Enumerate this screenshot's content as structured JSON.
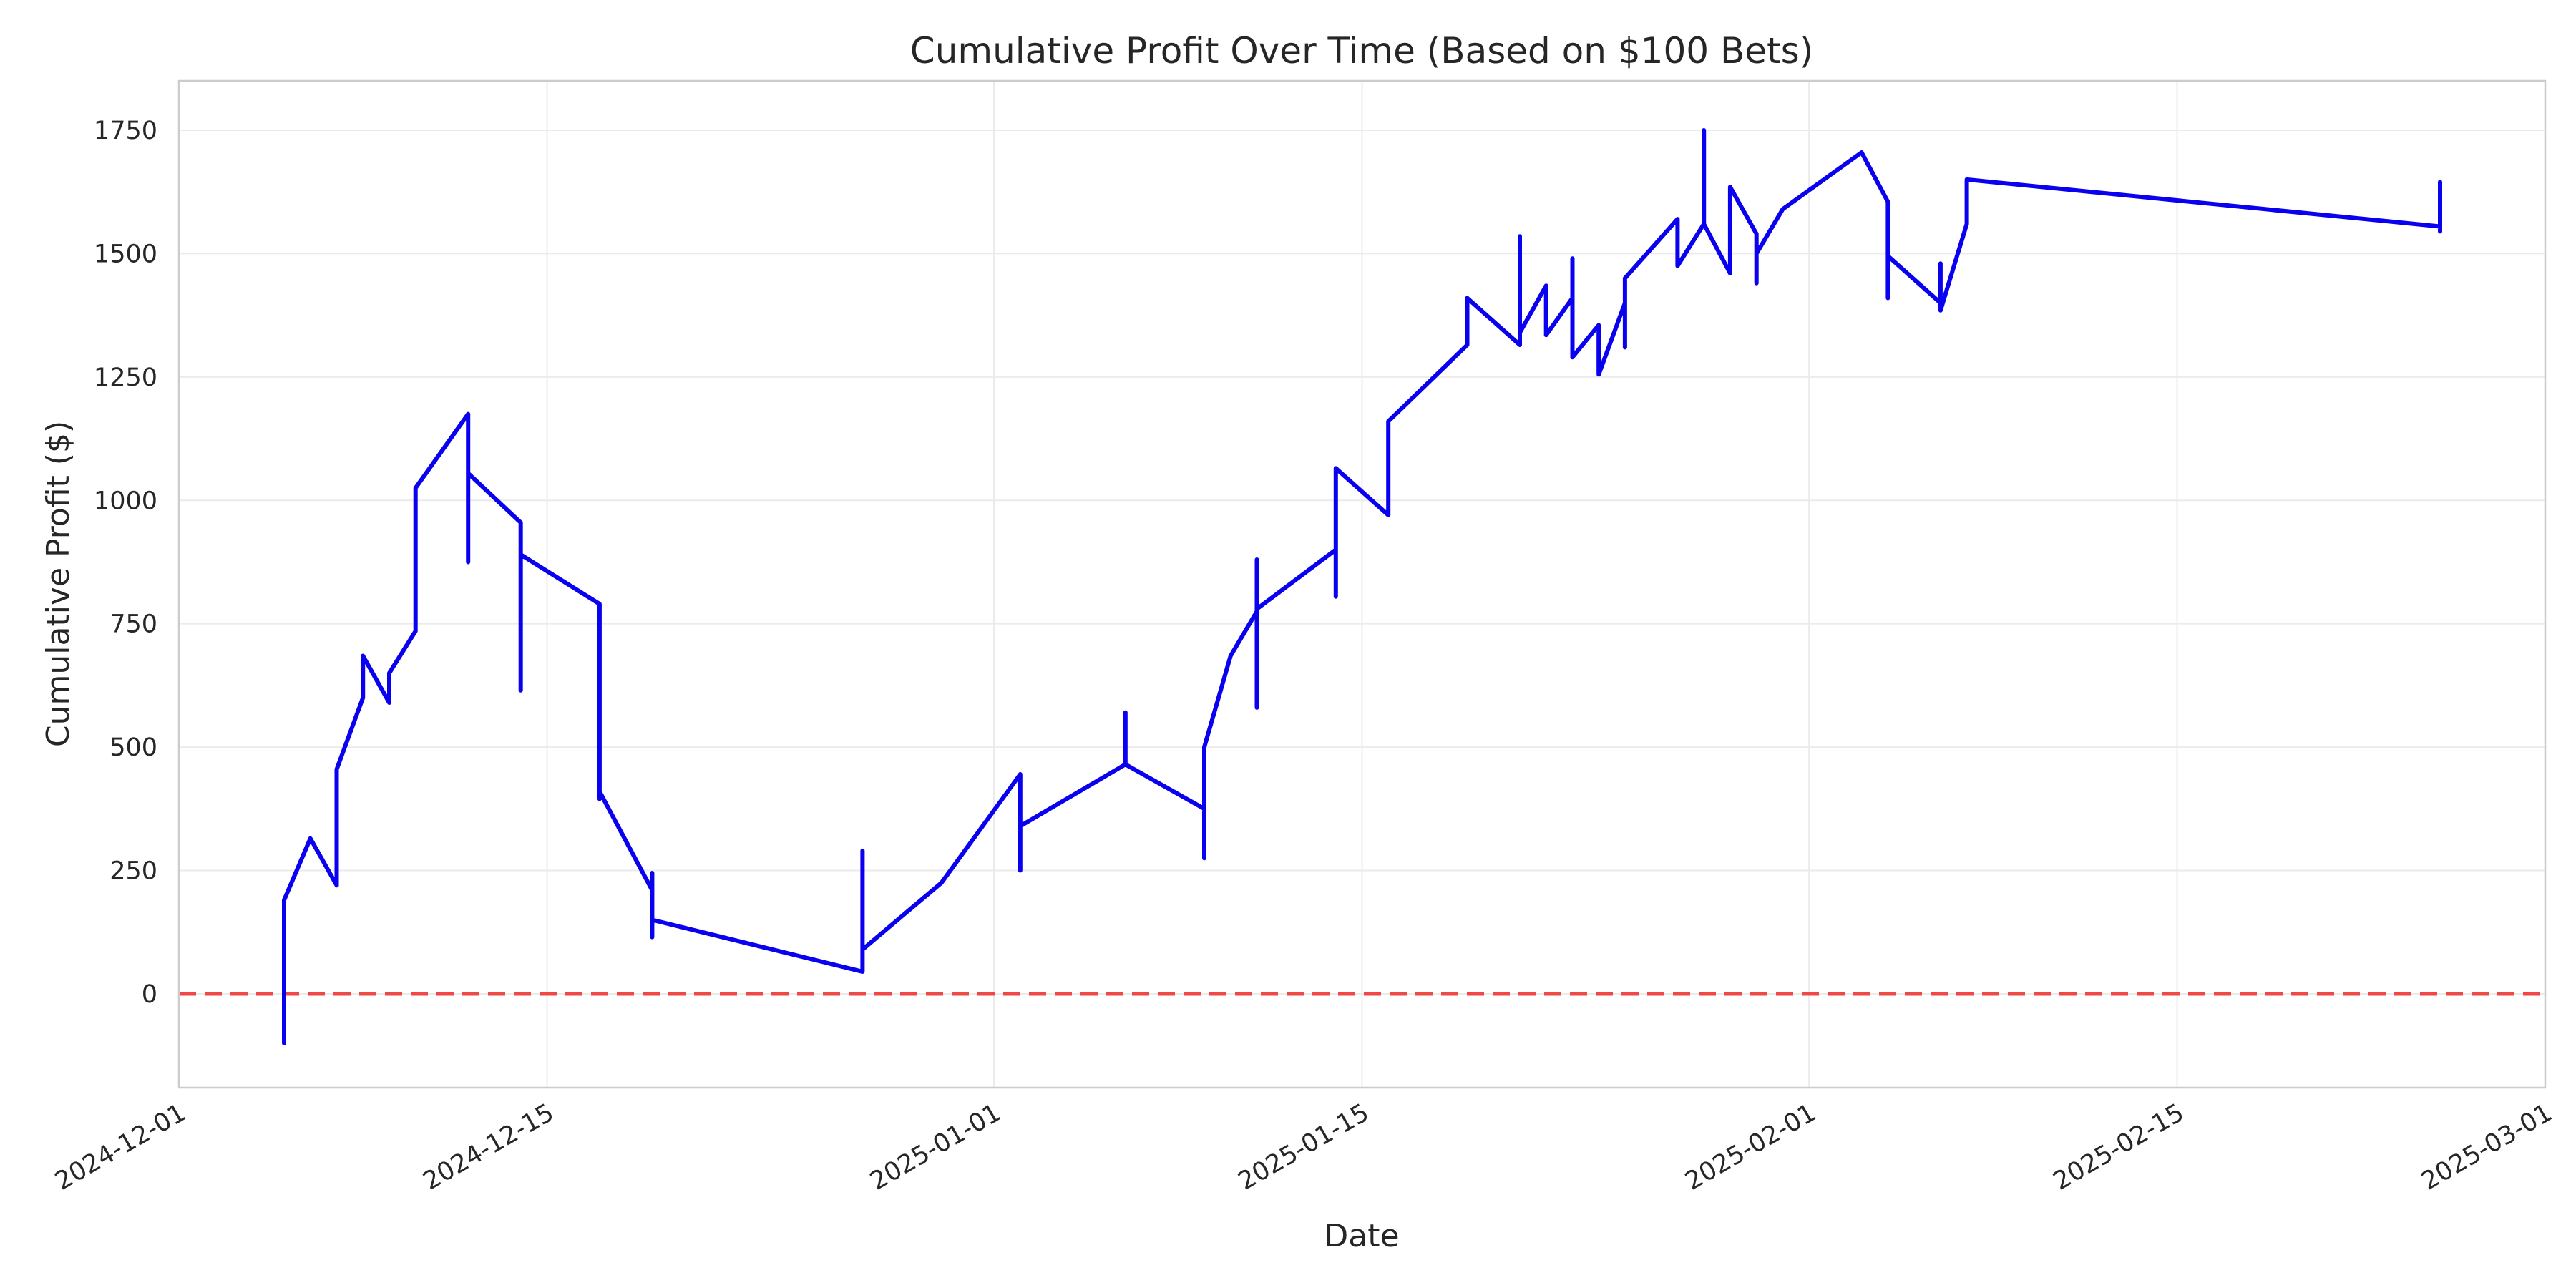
{
  "chart_data": {
    "type": "line",
    "title": "Cumulative Profit Over Time (Based on $100 Bets)",
    "xlabel": "Date",
    "ylabel": "Cumulative Profit ($)",
    "xlim": [
      "2024-12-01",
      "2025-03-01"
    ],
    "ylim": [
      -190,
      1850
    ],
    "grid": true,
    "x_ticks": [
      "2024-12-01",
      "2024-12-15",
      "2025-01-01",
      "2025-01-15",
      "2025-02-01",
      "2025-02-15",
      "2025-03-01"
    ],
    "y_ticks": [
      0,
      250,
      500,
      750,
      1000,
      1250,
      1500,
      1750
    ],
    "reference_line": {
      "y": 0,
      "style": "dashed",
      "color": "#f04747"
    },
    "series": [
      {
        "color": "#0a00f0",
        "points": [
          [
            "2024-12-05",
            -100
          ],
          [
            "2024-12-05",
            190
          ],
          [
            "2024-12-06",
            315
          ],
          [
            "2024-12-07",
            220
          ],
          [
            "2024-12-07",
            455
          ],
          [
            "2024-12-08",
            600
          ],
          [
            "2024-12-08",
            685
          ],
          [
            "2024-12-09",
            590
          ],
          [
            "2024-12-09",
            650
          ],
          [
            "2024-12-10",
            735
          ],
          [
            "2024-12-10",
            1025
          ],
          [
            "2024-12-12",
            1175
          ],
          [
            "2024-12-12",
            875
          ],
          [
            "2024-12-12",
            1055
          ],
          [
            "2024-12-14",
            955
          ],
          [
            "2024-12-14",
            615
          ],
          [
            "2024-12-14",
            890
          ],
          [
            "2024-12-17",
            790
          ],
          [
            "2024-12-17",
            395
          ],
          [
            "2024-12-17",
            410
          ],
          [
            "2024-12-19",
            210
          ],
          [
            "2024-12-19",
            115
          ],
          [
            "2024-12-19",
            245
          ],
          [
            "2024-12-19",
            150
          ],
          [
            "2024-12-27",
            45
          ],
          [
            "2024-12-27",
            290
          ],
          [
            "2024-12-27",
            90
          ],
          [
            "2024-12-30",
            225
          ],
          [
            "2025-01-02",
            445
          ],
          [
            "2025-01-02",
            250
          ],
          [
            "2025-01-02",
            340
          ],
          [
            "2025-01-06",
            465
          ],
          [
            "2025-01-06",
            570
          ],
          [
            "2025-01-06",
            465
          ],
          [
            "2025-01-09",
            375
          ],
          [
            "2025-01-09",
            275
          ],
          [
            "2025-01-09",
            500
          ],
          [
            "2025-01-10",
            685
          ],
          [
            "2025-01-11",
            775
          ],
          [
            "2025-01-11",
            580
          ],
          [
            "2025-01-11",
            880
          ],
          [
            "2025-01-11",
            780
          ],
          [
            "2025-01-14",
            900
          ],
          [
            "2025-01-14",
            805
          ],
          [
            "2025-01-14",
            1065
          ],
          [
            "2025-01-16",
            970
          ],
          [
            "2025-01-16",
            1160
          ],
          [
            "2025-01-19",
            1315
          ],
          [
            "2025-01-19",
            1410
          ],
          [
            "2025-01-21",
            1315
          ],
          [
            "2025-01-21",
            1535
          ],
          [
            "2025-01-21",
            1340
          ],
          [
            "2025-01-22",
            1435
          ],
          [
            "2025-01-22",
            1335
          ],
          [
            "2025-01-23",
            1410
          ],
          [
            "2025-01-23",
            1490
          ],
          [
            "2025-01-23",
            1290
          ],
          [
            "2025-01-24",
            1355
          ],
          [
            "2025-01-24",
            1255
          ],
          [
            "2025-01-25",
            1400
          ],
          [
            "2025-01-25",
            1310
          ],
          [
            "2025-01-25",
            1450
          ],
          [
            "2025-01-27",
            1570
          ],
          [
            "2025-01-27",
            1475
          ],
          [
            "2025-01-28",
            1560
          ],
          [
            "2025-01-28",
            1750
          ],
          [
            "2025-01-28",
            1560
          ],
          [
            "2025-01-29",
            1460
          ],
          [
            "2025-01-29",
            1635
          ],
          [
            "2025-01-30",
            1540
          ],
          [
            "2025-01-30",
            1440
          ],
          [
            "2025-01-30",
            1500
          ],
          [
            "2025-01-31",
            1590
          ],
          [
            "2025-02-03",
            1705
          ],
          [
            "2025-02-04",
            1605
          ],
          [
            "2025-02-04",
            1410
          ],
          [
            "2025-02-04",
            1495
          ],
          [
            "2025-02-06",
            1400
          ],
          [
            "2025-02-06",
            1480
          ],
          [
            "2025-02-06",
            1385
          ],
          [
            "2025-02-07",
            1560
          ],
          [
            "2025-02-07",
            1650
          ],
          [
            "2025-02-25",
            1555
          ],
          [
            "2025-02-25",
            1545
          ],
          [
            "2025-02-25",
            1645
          ]
        ]
      }
    ]
  }
}
